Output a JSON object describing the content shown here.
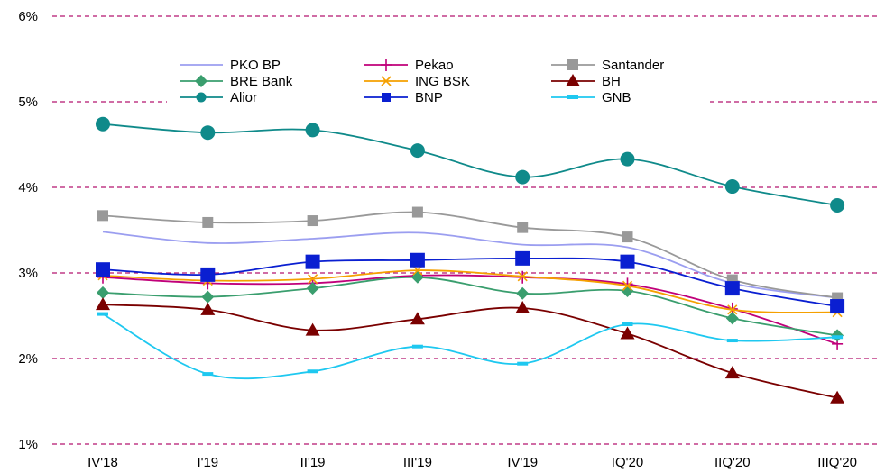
{
  "chart_data": {
    "type": "line",
    "categories": [
      "IV'18",
      "I'19",
      "II'19",
      "III'19",
      "IV'19",
      "IQ'20",
      "IIQ'20",
      "IIIQ'20"
    ],
    "ylim": [
      1,
      6
    ],
    "yticks": [
      "1%",
      "2%",
      "3%",
      "4%",
      "5%",
      "6%"
    ],
    "grid": "horizontal dashed",
    "legend_position": "top",
    "series": [
      {
        "name": "PKO BP",
        "color": "#9b9ef0",
        "marker": "none",
        "values": [
          3.48,
          3.35,
          3.4,
          3.47,
          3.33,
          3.3,
          2.88,
          2.71
        ]
      },
      {
        "name": "Pekao",
        "color": "#c0007a",
        "marker": "plus",
        "values": [
          2.95,
          2.88,
          2.88,
          2.97,
          2.95,
          2.87,
          2.58,
          2.17
        ]
      },
      {
        "name": "Santander",
        "color": "#999999",
        "marker": "square",
        "values": [
          3.67,
          3.59,
          3.61,
          3.71,
          3.53,
          3.42,
          2.92,
          2.71
        ]
      },
      {
        "name": "BRE Bank",
        "color": "#3a9e6e",
        "marker": "diamond",
        "values": [
          2.77,
          2.72,
          2.82,
          2.95,
          2.76,
          2.79,
          2.47,
          2.27
        ]
      },
      {
        "name": "ING BSK",
        "color": "#f5a000",
        "marker": "x",
        "values": [
          2.97,
          2.91,
          2.93,
          3.03,
          2.96,
          2.85,
          2.57,
          2.54
        ]
      },
      {
        "name": "BH",
        "color": "#7a0000",
        "marker": "triangle",
        "values": [
          2.63,
          2.57,
          2.33,
          2.46,
          2.59,
          2.29,
          1.83,
          1.54
        ]
      },
      {
        "name": "Alior",
        "color": "#0f8a8a",
        "marker": "circle",
        "values": [
          4.74,
          4.64,
          4.67,
          4.43,
          4.12,
          4.33,
          4.01,
          3.79
        ]
      },
      {
        "name": "BNP",
        "color": "#0a1fd1",
        "marker": "bigsquare",
        "values": [
          3.04,
          2.98,
          3.13,
          3.15,
          3.17,
          3.13,
          2.82,
          2.61
        ]
      },
      {
        "name": "GNB",
        "color": "#1ec8f0",
        "marker": "dash",
        "values": [
          2.52,
          1.82,
          1.85,
          2.14,
          1.94,
          2.4,
          2.21,
          2.25
        ]
      }
    ]
  }
}
